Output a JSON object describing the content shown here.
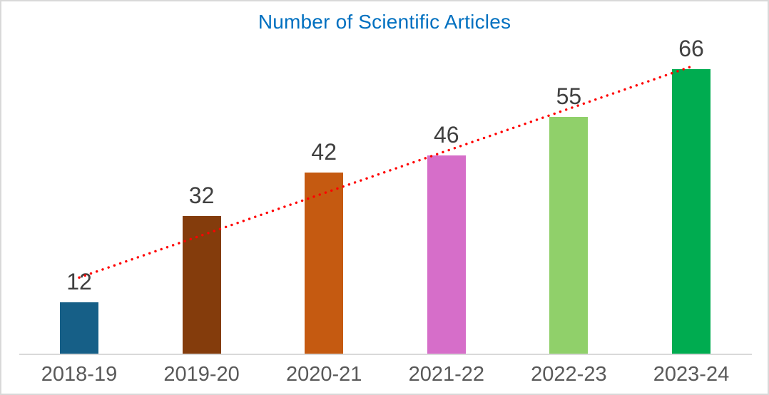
{
  "chart_data": {
    "type": "bar",
    "title": "Number of Scientific Articles",
    "categories": [
      "2018-19",
      "2019-20",
      "2020-21",
      "2021-22",
      "2022-23",
      "2023-24"
    ],
    "values": [
      12,
      32,
      42,
      46,
      55,
      66
    ],
    "data_labels": [
      "12",
      "32",
      "42",
      "46",
      "55",
      "66"
    ],
    "bar_colors": [
      "#165F87",
      "#843C0C",
      "#C55A11",
      "#D66EC9",
      "#90D06A",
      "#00AC50"
    ],
    "xlabel": "",
    "ylabel": "",
    "ylim": [
      0,
      66
    ],
    "grid": false,
    "legend": false,
    "yaxis_visible": false,
    "xaxis_line_visible": true,
    "trendline": {
      "type": "linear",
      "style": "dotted",
      "color": "#FF0000"
    },
    "colors": {
      "title": "#0070C0",
      "data_label": "#404040",
      "axis_label": "#595959",
      "axis_line": "#D9D9D9",
      "frame_border": "#D9D9D9",
      "background": "#FFFFFF"
    }
  }
}
